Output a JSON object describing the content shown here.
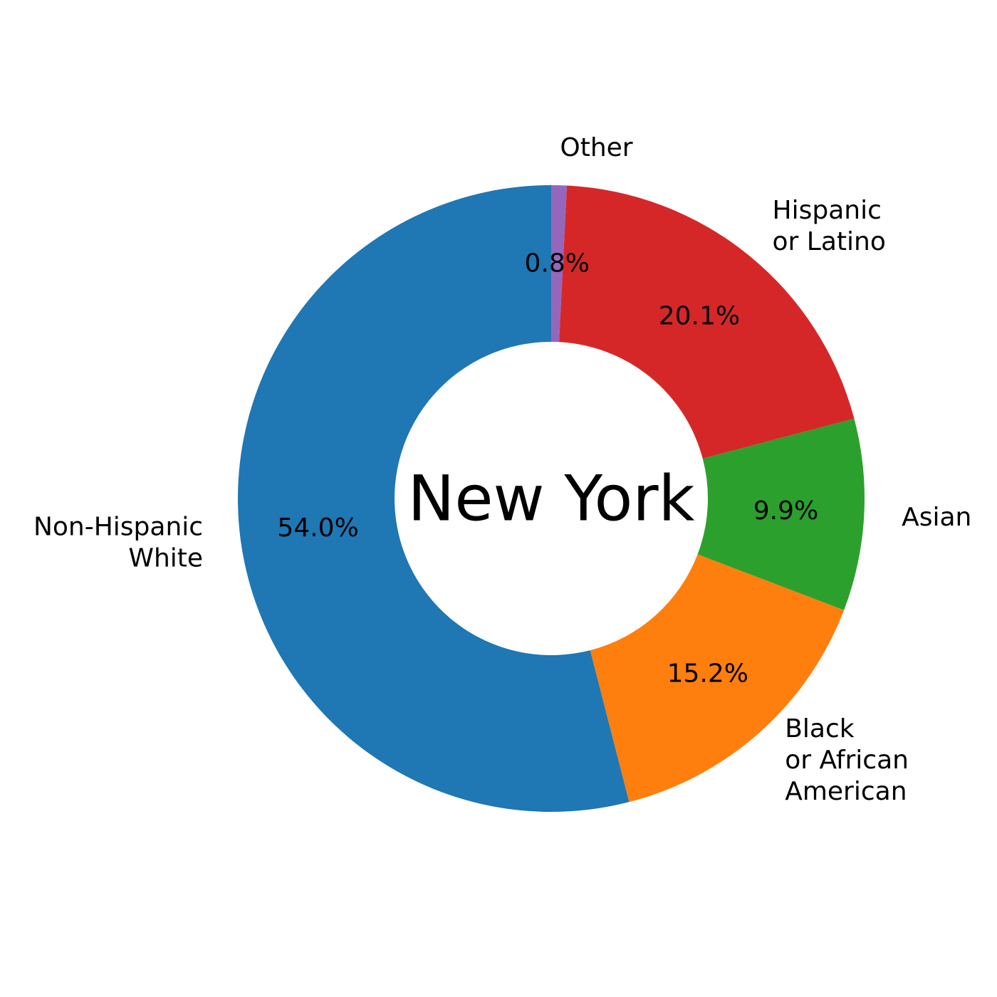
{
  "chart_data": {
    "type": "pie",
    "donut": true,
    "center_label": "New York",
    "start_angle_deg": 90,
    "direction": "clockwise",
    "slices": [
      {
        "name": "Other",
        "label_lines": [
          "Other"
        ],
        "value": 0.8,
        "pct_label": "0.8%",
        "color": "#9467bd"
      },
      {
        "name": "Hispanic or Latino",
        "label_lines": [
          "Hispanic",
          "or Latino"
        ],
        "value": 20.1,
        "pct_label": "20.1%",
        "color": "#d62728"
      },
      {
        "name": "Asian",
        "label_lines": [
          "Asian"
        ],
        "value": 9.9,
        "pct_label": "9.9%",
        "color": "#2ca02c"
      },
      {
        "name": "Black or African American",
        "label_lines": [
          "Black",
          "or African",
          "American"
        ],
        "value": 15.2,
        "pct_label": "15.2%",
        "color": "#ff7f0e"
      },
      {
        "name": "Non-Hispanic White",
        "label_lines": [
          "Non-Hispanic",
          "White"
        ],
        "value": 54.0,
        "pct_label": "54.0%",
        "color": "#1f77b4"
      }
    ]
  }
}
